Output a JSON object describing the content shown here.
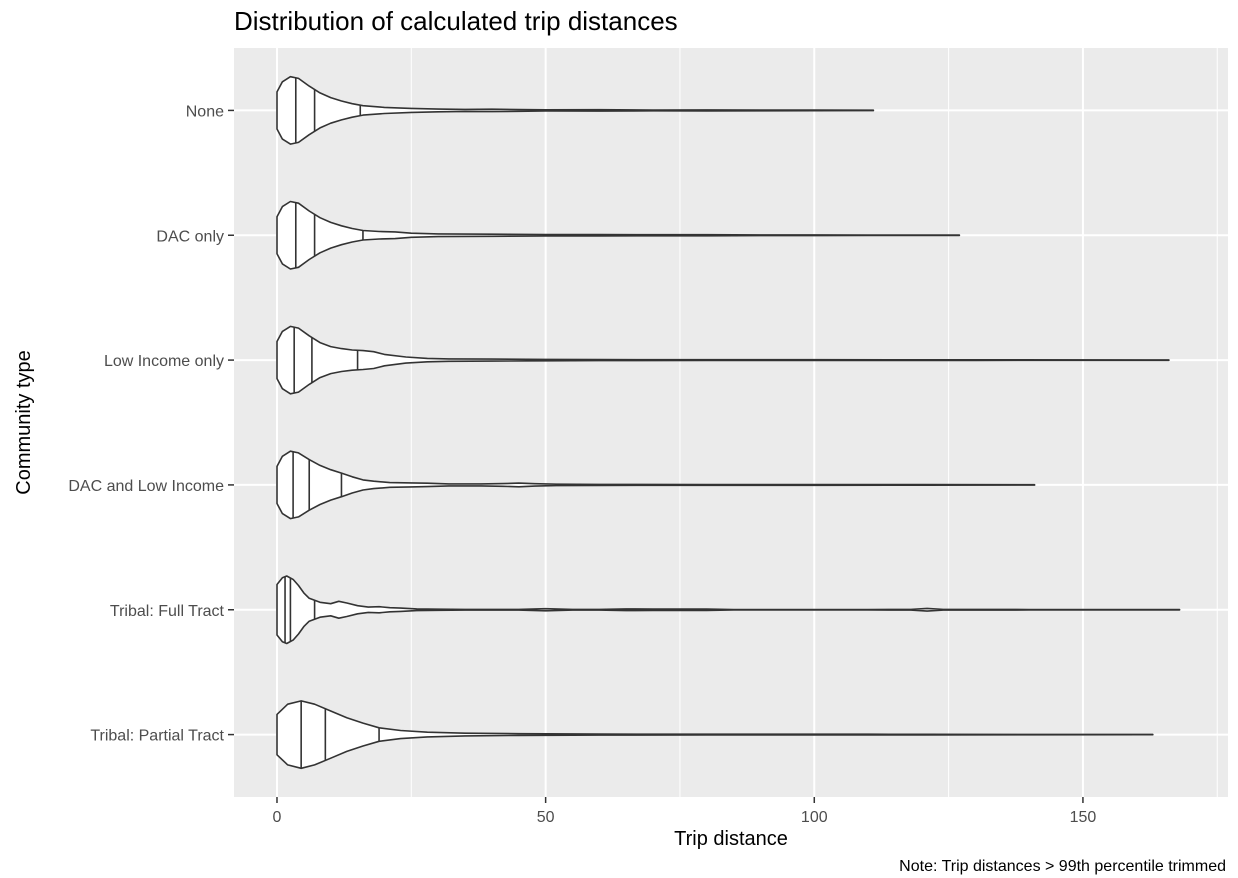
{
  "chart_data": {
    "type": "violin",
    "title": "Distribution of calculated trip distances",
    "xlabel": "Trip distance",
    "ylabel": "Community type",
    "caption": "Note: Trip distances > 99th percentile trimmed",
    "xlim": [
      -8,
      177
    ],
    "x_ticks": [
      0,
      50,
      100,
      150
    ],
    "orientation": "horizontal",
    "grid": true,
    "colors": {
      "panel": "#ebebeb",
      "grid": "#ffffff",
      "outline": "#333333"
    },
    "categories": [
      "None",
      "DAC only",
      "Low Income only",
      "DAC and Low Income",
      "Tribal: Full Tract",
      "Tribal: Partial Tract"
    ],
    "series": [
      {
        "category": "None",
        "max": 111,
        "quantiles": [
          3.5,
          7,
          15.5
        ],
        "density": [
          [
            0,
            0.55
          ],
          [
            1,
            0.85
          ],
          [
            2.5,
            1.0
          ],
          [
            4,
            0.95
          ],
          [
            6,
            0.72
          ],
          [
            8,
            0.52
          ],
          [
            10,
            0.38
          ],
          [
            12,
            0.28
          ],
          [
            14,
            0.2
          ],
          [
            16,
            0.14
          ],
          [
            20,
            0.09
          ],
          [
            25,
            0.06
          ],
          [
            30,
            0.04
          ],
          [
            35,
            0.03
          ],
          [
            40,
            0.035
          ],
          [
            45,
            0.025
          ],
          [
            50,
            0.018
          ],
          [
            60,
            0.02
          ],
          [
            70,
            0.012
          ],
          [
            80,
            0.016
          ],
          [
            90,
            0.01
          ],
          [
            100,
            0.008
          ],
          [
            111,
            0.005
          ]
        ]
      },
      {
        "category": "DAC only",
        "max": 127,
        "quantiles": [
          3.5,
          7,
          16
        ],
        "density": [
          [
            0,
            0.55
          ],
          [
            1,
            0.85
          ],
          [
            2.5,
            1.0
          ],
          [
            4,
            0.95
          ],
          [
            6,
            0.72
          ],
          [
            8,
            0.52
          ],
          [
            10,
            0.38
          ],
          [
            12,
            0.28
          ],
          [
            14,
            0.2
          ],
          [
            16,
            0.14
          ],
          [
            19,
            0.11
          ],
          [
            22,
            0.1
          ],
          [
            25,
            0.06
          ],
          [
            30,
            0.04
          ],
          [
            40,
            0.03
          ],
          [
            50,
            0.02
          ],
          [
            60,
            0.018
          ],
          [
            70,
            0.015
          ],
          [
            80,
            0.017
          ],
          [
            90,
            0.01
          ],
          [
            100,
            0.009
          ],
          [
            110,
            0.007
          ],
          [
            127,
            0.005
          ]
        ]
      },
      {
        "category": "Low Income only",
        "max": 166,
        "quantiles": [
          3.2,
          6.5,
          15
        ],
        "density": [
          [
            0,
            0.55
          ],
          [
            1,
            0.85
          ],
          [
            2.5,
            1.0
          ],
          [
            4,
            0.95
          ],
          [
            6,
            0.72
          ],
          [
            8,
            0.52
          ],
          [
            10,
            0.4
          ],
          [
            12,
            0.34
          ],
          [
            14,
            0.3
          ],
          [
            16,
            0.28
          ],
          [
            18,
            0.25
          ],
          [
            20,
            0.17
          ],
          [
            24,
            0.09
          ],
          [
            28,
            0.05
          ],
          [
            32,
            0.035
          ],
          [
            40,
            0.03
          ],
          [
            50,
            0.02
          ],
          [
            60,
            0.015
          ],
          [
            80,
            0.012
          ],
          [
            100,
            0.01
          ],
          [
            130,
            0.008
          ],
          [
            166,
            0.005
          ]
        ]
      },
      {
        "category": "DAC and Low Income",
        "max": 141,
        "quantiles": [
          3,
          6,
          12
        ],
        "density": [
          [
            0,
            0.55
          ],
          [
            1,
            0.85
          ],
          [
            2.5,
            1.0
          ],
          [
            4,
            0.95
          ],
          [
            6,
            0.75
          ],
          [
            8,
            0.58
          ],
          [
            10,
            0.45
          ],
          [
            12,
            0.35
          ],
          [
            14,
            0.24
          ],
          [
            16,
            0.15
          ],
          [
            18,
            0.11
          ],
          [
            21,
            0.07
          ],
          [
            25,
            0.06
          ],
          [
            28,
            0.05
          ],
          [
            32,
            0.03
          ],
          [
            38,
            0.03
          ],
          [
            42,
            0.04
          ],
          [
            45,
            0.055
          ],
          [
            48,
            0.035
          ],
          [
            52,
            0.02
          ],
          [
            60,
            0.015
          ],
          [
            80,
            0.012
          ],
          [
            100,
            0.01
          ],
          [
            120,
            0.008
          ],
          [
            141,
            0.005
          ]
        ]
      },
      {
        "category": "Tribal: Full Tract",
        "max": 168,
        "quantiles": [
          1.5,
          2.5,
          7
        ],
        "density": [
          [
            0,
            0.75
          ],
          [
            1,
            0.95
          ],
          [
            1.8,
            1.0
          ],
          [
            3,
            0.9
          ],
          [
            4,
            0.72
          ],
          [
            5,
            0.5
          ],
          [
            6,
            0.34
          ],
          [
            8,
            0.22
          ],
          [
            10,
            0.18
          ],
          [
            11.5,
            0.25
          ],
          [
            13,
            0.2
          ],
          [
            15,
            0.12
          ],
          [
            17,
            0.08
          ],
          [
            19,
            0.09
          ],
          [
            21,
            0.06
          ],
          [
            23,
            0.05
          ],
          [
            26,
            0.025
          ],
          [
            30,
            0.015
          ],
          [
            35,
            0.01
          ],
          [
            45,
            0.01
          ],
          [
            50,
            0.03
          ],
          [
            55,
            0.01
          ],
          [
            60,
            0.01
          ],
          [
            65,
            0.025
          ],
          [
            70,
            0.02
          ],
          [
            75,
            0.02
          ],
          [
            80,
            0.02
          ],
          [
            85,
            0.008
          ],
          [
            110,
            0.008
          ],
          [
            118,
            0.01
          ],
          [
            121,
            0.04
          ],
          [
            124,
            0.01
          ],
          [
            140,
            0.008
          ],
          [
            168,
            0.005
          ]
        ]
      },
      {
        "category": "Tribal: Partial Tract",
        "max": 163,
        "quantiles": [
          4.5,
          9,
          19
        ],
        "density": [
          [
            0,
            0.6
          ],
          [
            2,
            0.9
          ],
          [
            4.5,
            1.0
          ],
          [
            7,
            0.9
          ],
          [
            10,
            0.7
          ],
          [
            13,
            0.5
          ],
          [
            16,
            0.34
          ],
          [
            19,
            0.2
          ],
          [
            23,
            0.12
          ],
          [
            28,
            0.07
          ],
          [
            35,
            0.04
          ],
          [
            45,
            0.025
          ],
          [
            60,
            0.015
          ],
          [
            80,
            0.012
          ],
          [
            100,
            0.01
          ],
          [
            110,
            0.012
          ],
          [
            120,
            0.008
          ],
          [
            140,
            0.006
          ],
          [
            163,
            0.004
          ]
        ]
      }
    ]
  }
}
